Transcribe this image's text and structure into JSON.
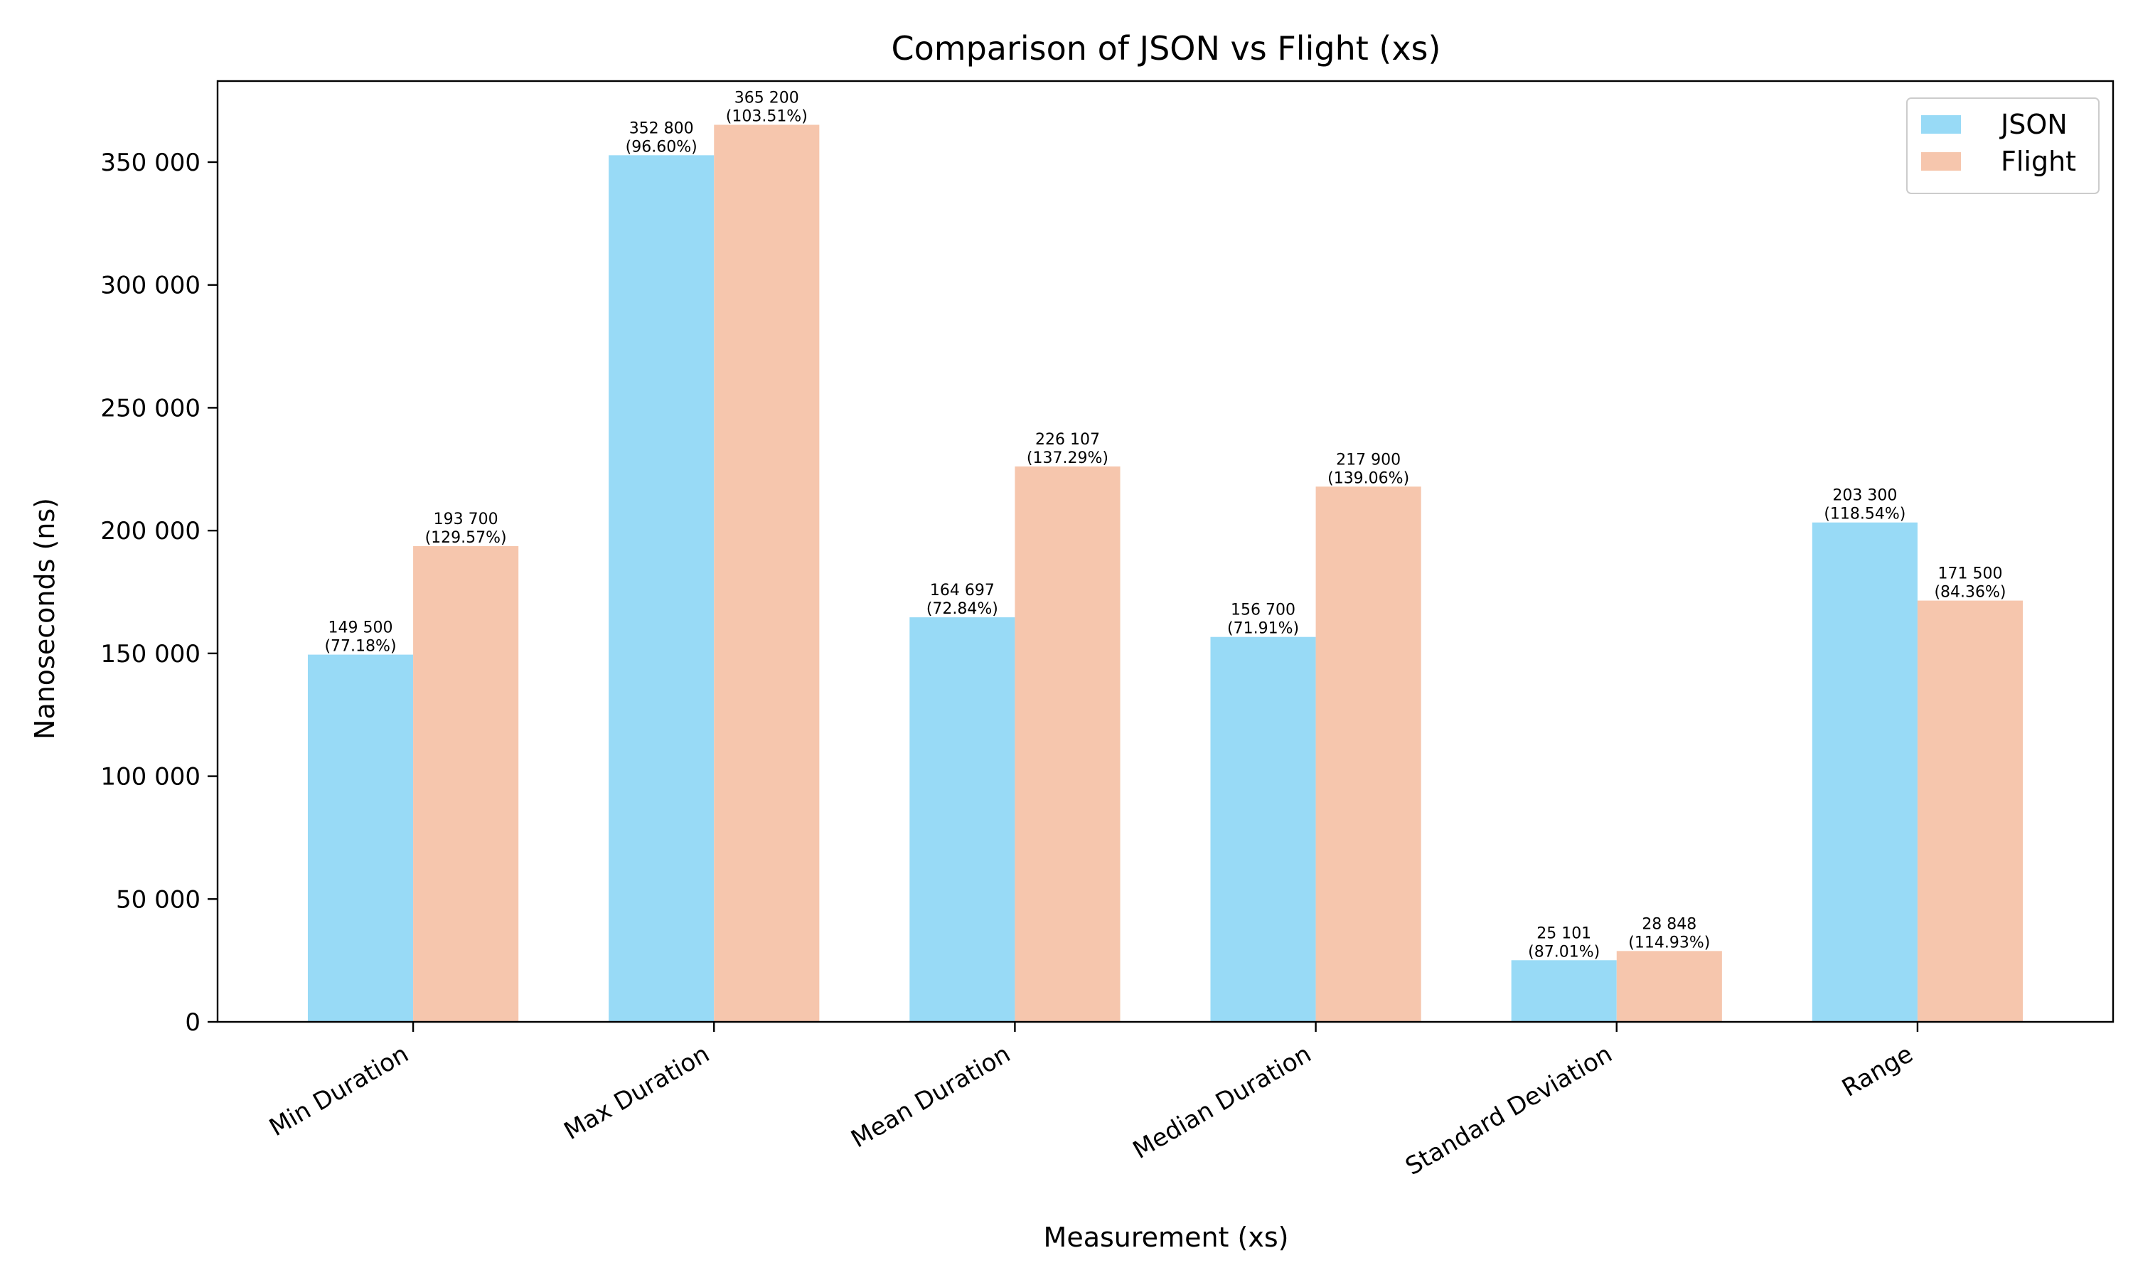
{
  "chart_data": {
    "type": "bar",
    "title": "Comparison of JSON vs Flight (xs)",
    "xlabel": "Measurement (xs)",
    "ylabel": "Nanoseconds (ns)",
    "categories": [
      "Min Duration",
      "Max Duration",
      "Mean Duration",
      "Median Duration",
      "Standard Deviation",
      "Range"
    ],
    "series": [
      {
        "name": "JSON",
        "color": "#98daf6",
        "values": [
          149500,
          352800,
          164697,
          156700,
          25101,
          203300
        ],
        "value_labels": [
          "149 500",
          "352 800",
          "164 697",
          "156 700",
          "25 101",
          "203 300"
        ],
        "pct_labels": [
          "(77.18%)",
          "(96.60%)",
          "(72.84%)",
          "(71.91%)",
          "(87.01%)",
          "(118.54%)"
        ]
      },
      {
        "name": "Flight",
        "color": "#f6c6ad",
        "values": [
          193700,
          365200,
          226107,
          217900,
          28848,
          171500
        ],
        "value_labels": [
          "193 700",
          "365 200",
          "226 107",
          "217 900",
          "28 848",
          "171 500"
        ],
        "pct_labels": [
          "(129.57%)",
          "(103.51%)",
          "(137.29%)",
          "(139.06%)",
          "(114.93%)",
          "(84.36%)"
        ]
      }
    ],
    "ylim": [
      0,
      383000
    ],
    "yticks": [
      0,
      50000,
      100000,
      150000,
      200000,
      250000,
      300000,
      350000
    ],
    "ytick_labels": [
      "0",
      "50 000",
      "100 000",
      "150 000",
      "200 000",
      "250 000",
      "300 000",
      "350 000"
    ],
    "grid": false,
    "legend_position": "top-right"
  }
}
